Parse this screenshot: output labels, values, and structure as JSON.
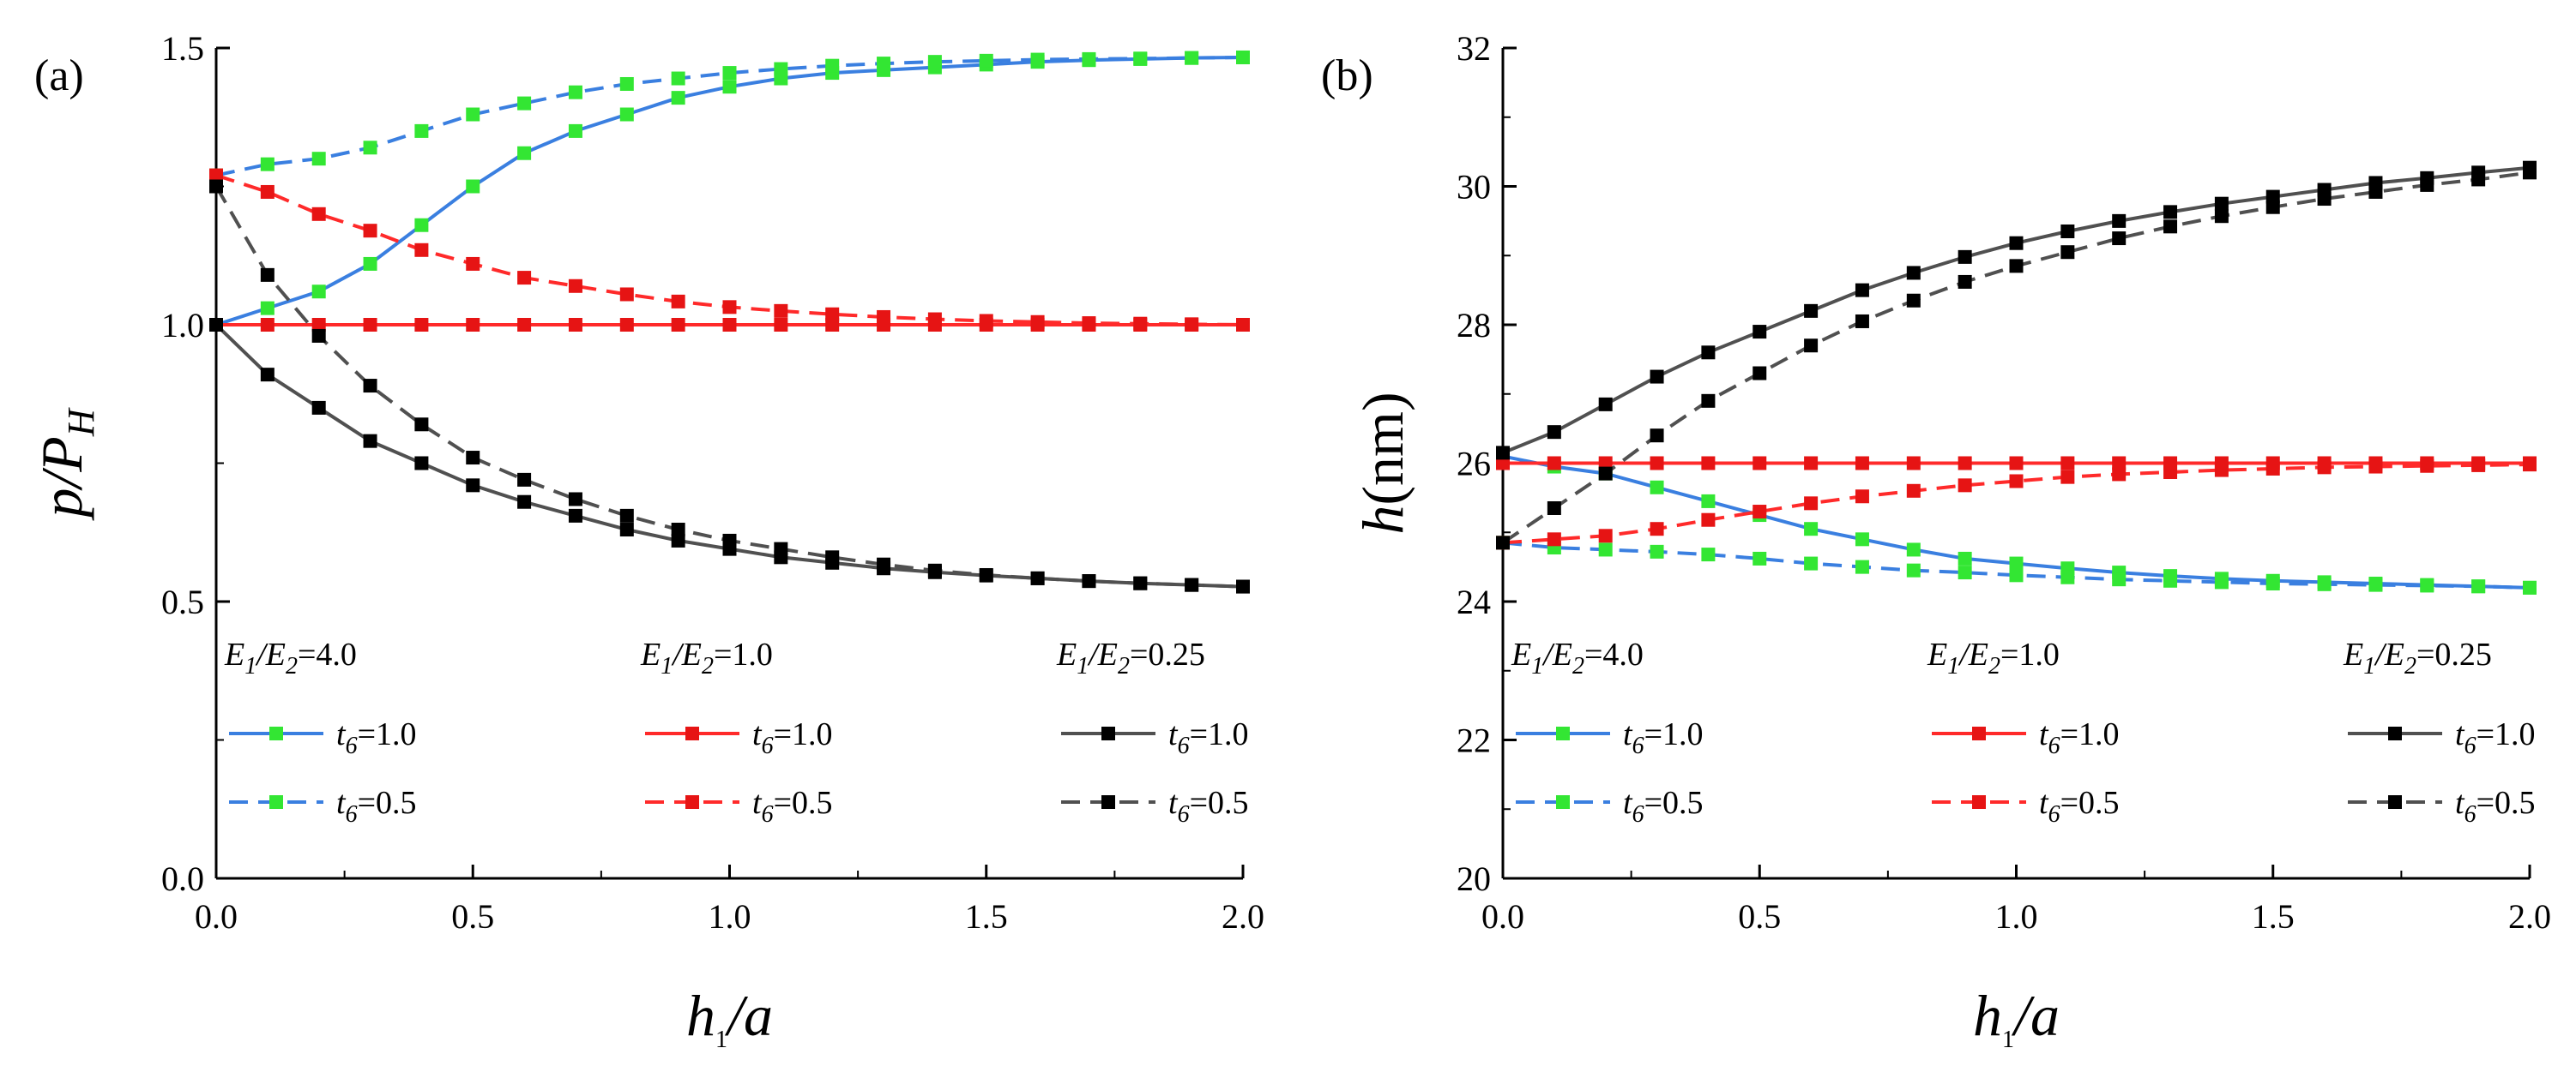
{
  "chart_data": [
    {
      "panel_label": "(a)",
      "type": "line",
      "ylabel": {
        "main": "p/P",
        "sub": "H"
      },
      "xlabel": {
        "main": "h",
        "sub": "1",
        "tail": "/a"
      },
      "xlim": [
        0,
        2.0
      ],
      "ylim": [
        0,
        1.5
      ],
      "xticks": [
        "0.0",
        "0.5",
        "1.0",
        "1.5",
        "2.0"
      ],
      "yticks": [
        "0.0",
        "0.5",
        "1.0",
        "1.5"
      ],
      "x": [
        0.0,
        0.1,
        0.2,
        0.3,
        0.4,
        0.5,
        0.6,
        0.7,
        0.8,
        0.9,
        1.0,
        1.1,
        1.2,
        1.3,
        1.4,
        1.5,
        1.6,
        1.7,
        1.8,
        1.9,
        2.0
      ],
      "series": [
        {
          "group": 0,
          "row": 0,
          "color": "#3a7fe0",
          "marker": "#33e633",
          "dash": false,
          "values": [
            1.0,
            1.03,
            1.06,
            1.11,
            1.18,
            1.25,
            1.31,
            1.35,
            1.38,
            1.41,
            1.43,
            1.445,
            1.455,
            1.46,
            1.465,
            1.47,
            1.475,
            1.478,
            1.48,
            1.482,
            1.483
          ]
        },
        {
          "group": 0,
          "row": 1,
          "color": "#3a7fe0",
          "marker": "#33e633",
          "dash": true,
          "values": [
            1.27,
            1.29,
            1.3,
            1.32,
            1.35,
            1.38,
            1.4,
            1.42,
            1.435,
            1.445,
            1.455,
            1.462,
            1.468,
            1.472,
            1.475,
            1.477,
            1.479,
            1.48,
            1.481,
            1.482,
            1.483
          ]
        },
        {
          "group": 1,
          "row": 0,
          "color": "#ff2a2a",
          "marker": "#e61414",
          "dash": false,
          "values": [
            1.0,
            1.0,
            1.0,
            1.0,
            1.0,
            1.0,
            1.0,
            1.0,
            1.0,
            1.0,
            1.0,
            1.0,
            1.0,
            1.0,
            1.0,
            1.0,
            1.0,
            1.0,
            1.0,
            1.0,
            1.0
          ]
        },
        {
          "group": 1,
          "row": 1,
          "color": "#ff2a2a",
          "marker": "#e61414",
          "dash": true,
          "values": [
            1.27,
            1.24,
            1.2,
            1.17,
            1.135,
            1.11,
            1.085,
            1.07,
            1.055,
            1.042,
            1.032,
            1.025,
            1.019,
            1.014,
            1.01,
            1.007,
            1.005,
            1.003,
            1.002,
            1.001,
            1.0
          ]
        },
        {
          "group": 2,
          "row": 0,
          "color": "#505050",
          "marker": "#000000",
          "dash": false,
          "values": [
            1.0,
            0.91,
            0.85,
            0.79,
            0.75,
            0.71,
            0.68,
            0.655,
            0.63,
            0.61,
            0.595,
            0.58,
            0.57,
            0.56,
            0.553,
            0.547,
            0.542,
            0.537,
            0.533,
            0.53,
            0.527
          ]
        },
        {
          "group": 2,
          "row": 1,
          "color": "#505050",
          "marker": "#000000",
          "dash": true,
          "values": [
            1.25,
            1.09,
            0.98,
            0.89,
            0.82,
            0.76,
            0.72,
            0.685,
            0.655,
            0.63,
            0.61,
            0.595,
            0.58,
            0.567,
            0.556,
            0.548,
            0.542,
            0.537,
            0.533,
            0.53,
            0.527
          ]
        }
      ],
      "legend": {
        "groups": [
          {
            "title_main": "E",
            "title_sub1": "1",
            "title_mid": "/E",
            "title_sub2": "2",
            "title_value": "=4.0"
          },
          {
            "title_main": "E",
            "title_sub1": "1",
            "title_mid": "/E",
            "title_sub2": "2",
            "title_value": "=1.0"
          },
          {
            "title_main": "E",
            "title_sub1": "1",
            "title_mid": "/E",
            "title_sub2": "2",
            "title_value": "=0.25"
          }
        ],
        "rows": [
          {
            "label_main": "t",
            "label_sub": "6",
            "label_value": "=1.0"
          },
          {
            "label_main": "t",
            "label_sub": "6",
            "label_value": "=0.5"
          }
        ]
      }
    },
    {
      "panel_label": "(b)",
      "type": "line",
      "ylabel": {
        "main": "h",
        "tail": "(nm)"
      },
      "xlabel": {
        "main": "h",
        "sub": "1",
        "tail": "/a"
      },
      "xlim": [
        0,
        2.0
      ],
      "ylim": [
        20,
        32
      ],
      "xticks": [
        "0.0",
        "0.5",
        "1.0",
        "1.5",
        "2.0"
      ],
      "yticks": [
        "20",
        "22",
        "24",
        "26",
        "28",
        "30",
        "32"
      ],
      "x": [
        0.0,
        0.1,
        0.2,
        0.3,
        0.4,
        0.5,
        0.6,
        0.7,
        0.8,
        0.9,
        1.0,
        1.1,
        1.2,
        1.3,
        1.4,
        1.5,
        1.6,
        1.7,
        1.8,
        1.9,
        2.0
      ],
      "series": [
        {
          "group": 0,
          "row": 0,
          "color": "#3a7fe0",
          "marker": "#33e633",
          "dash": false,
          "values": [
            26.1,
            25.95,
            25.85,
            25.65,
            25.45,
            25.25,
            25.05,
            24.9,
            24.75,
            24.62,
            24.55,
            24.48,
            24.42,
            24.37,
            24.33,
            24.3,
            24.28,
            24.26,
            24.24,
            24.22,
            24.2
          ]
        },
        {
          "group": 0,
          "row": 1,
          "color": "#3a7fe0",
          "marker": "#33e633",
          "dash": true,
          "values": [
            24.85,
            24.78,
            24.75,
            24.72,
            24.68,
            24.62,
            24.55,
            24.5,
            24.45,
            24.42,
            24.38,
            24.35,
            24.32,
            24.3,
            24.28,
            24.26,
            24.25,
            24.24,
            24.23,
            24.22,
            24.2
          ]
        },
        {
          "group": 1,
          "row": 0,
          "color": "#ff2a2a",
          "marker": "#e61414",
          "dash": false,
          "values": [
            26.0,
            26.0,
            26.0,
            26.0,
            26.0,
            26.0,
            26.0,
            26.0,
            26.0,
            26.0,
            26.0,
            26.0,
            26.0,
            26.0,
            26.0,
            26.0,
            26.0,
            26.0,
            26.0,
            26.0,
            26.0
          ]
        },
        {
          "group": 1,
          "row": 1,
          "color": "#ff2a2a",
          "marker": "#e61414",
          "dash": true,
          "values": [
            24.85,
            24.9,
            24.95,
            25.05,
            25.18,
            25.3,
            25.42,
            25.52,
            25.6,
            25.68,
            25.74,
            25.8,
            25.84,
            25.87,
            25.9,
            25.92,
            25.94,
            25.95,
            25.96,
            25.97,
            25.98
          ]
        },
        {
          "group": 2,
          "row": 0,
          "color": "#505050",
          "marker": "#000000",
          "dash": false,
          "values": [
            26.15,
            26.45,
            26.85,
            27.25,
            27.6,
            27.9,
            28.2,
            28.5,
            28.75,
            28.98,
            29.18,
            29.35,
            29.5,
            29.63,
            29.75,
            29.85,
            29.95,
            30.05,
            30.12,
            30.2,
            30.27
          ]
        },
        {
          "group": 2,
          "row": 1,
          "color": "#505050",
          "marker": "#000000",
          "dash": true,
          "values": [
            24.85,
            25.35,
            25.85,
            26.4,
            26.9,
            27.3,
            27.7,
            28.05,
            28.35,
            28.62,
            28.85,
            29.05,
            29.25,
            29.42,
            29.57,
            29.7,
            29.82,
            29.92,
            30.02,
            30.1,
            30.2
          ]
        }
      ],
      "legend": {
        "groups": [
          {
            "title_main": "E",
            "title_sub1": "1",
            "title_mid": "/E",
            "title_sub2": "2",
            "title_value": "=4.0"
          },
          {
            "title_main": "E",
            "title_sub1": "1",
            "title_mid": "/E",
            "title_sub2": "2",
            "title_value": "=1.0"
          },
          {
            "title_main": "E",
            "title_sub1": "1",
            "title_mid": "/E",
            "title_sub2": "2",
            "title_value": "=0.25"
          }
        ],
        "rows": [
          {
            "label_main": "t",
            "label_sub": "6",
            "label_value": "=1.0"
          },
          {
            "label_main": "t",
            "label_sub": "6",
            "label_value": "=0.5"
          }
        ]
      }
    }
  ]
}
